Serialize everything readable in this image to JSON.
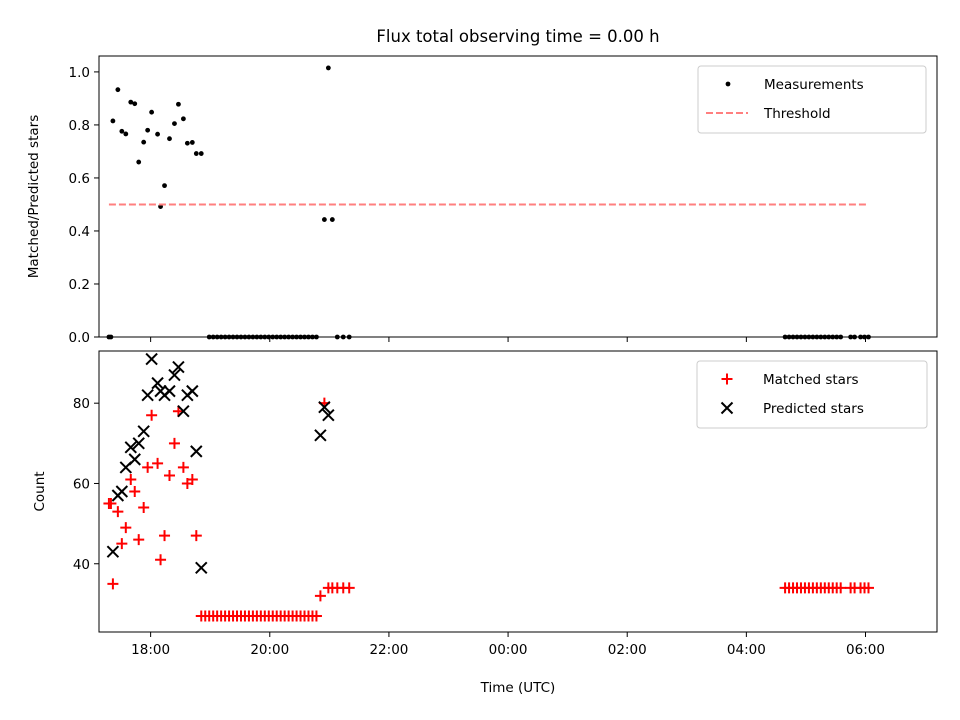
{
  "figure": {
    "title": "Flux total observing time = 0.00 h",
    "xlabel": "Time (UTC)"
  },
  "chart_data": [
    {
      "type": "scatter",
      "panel": "top",
      "ylabel": "Matched/Predicted stars",
      "x_axis_type": "time",
      "xlim": [
        "17:08",
        "07:12"
      ],
      "xticks": [
        "18:00",
        "20:00",
        "22:00",
        "00:00",
        "02:00",
        "04:00",
        "06:00"
      ],
      "ylim": [
        0,
        1.06
      ],
      "yticks": [
        "0.0",
        "0.2",
        "0.4",
        "0.6",
        "0.8",
        "1.0"
      ],
      "grid": false,
      "legend_position": "upper right",
      "legend": [
        "Measurements",
        "Threshold"
      ],
      "series": [
        {
          "name": "Measurements",
          "marker": "dot",
          "color": "#000000",
          "points": [
            [
              "17:18",
              0.0
            ],
            [
              "17:20",
              0.0
            ],
            [
              "17:22",
              0.815
            ],
            [
              "17:27",
              0.933
            ],
            [
              "17:31",
              0.776
            ],
            [
              "17:35",
              0.766
            ],
            [
              "17:40",
              0.886
            ],
            [
              "17:44",
              0.88
            ],
            [
              "17:48",
              0.66
            ],
            [
              "17:53",
              0.735
            ],
            [
              "17:57",
              0.78
            ],
            [
              "18:01",
              0.848
            ],
            [
              "18:07",
              0.765
            ],
            [
              "18:10",
              0.492
            ],
            [
              "18:14",
              0.571
            ],
            [
              "18:19",
              0.748
            ],
            [
              "18:24",
              0.805
            ],
            [
              "18:28",
              0.878
            ],
            [
              "18:33",
              0.823
            ],
            [
              "18:37",
              0.731
            ],
            [
              "18:42",
              0.734
            ],
            [
              "18:46",
              0.692
            ],
            [
              "18:51",
              0.692
            ],
            [
              "18:59",
              0.0
            ],
            [
              "19:03",
              0.0
            ],
            [
              "19:07",
              0.0
            ],
            [
              "19:11",
              0.0
            ],
            [
              "19:15",
              0.0
            ],
            [
              "19:19",
              0.0
            ],
            [
              "19:23",
              0.0
            ],
            [
              "19:27",
              0.0
            ],
            [
              "19:31",
              0.0
            ],
            [
              "19:35",
              0.0
            ],
            [
              "19:39",
              0.0
            ],
            [
              "19:43",
              0.0
            ],
            [
              "19:47",
              0.0
            ],
            [
              "19:51",
              0.0
            ],
            [
              "19:55",
              0.0
            ],
            [
              "19:59",
              0.0
            ],
            [
              "20:03",
              0.0
            ],
            [
              "20:07",
              0.0
            ],
            [
              "20:11",
              0.0
            ],
            [
              "20:15",
              0.0
            ],
            [
              "20:19",
              0.0
            ],
            [
              "20:23",
              0.0
            ],
            [
              "20:27",
              0.0
            ],
            [
              "20:31",
              0.0
            ],
            [
              "20:35",
              0.0
            ],
            [
              "20:39",
              0.0
            ],
            [
              "20:43",
              0.0
            ],
            [
              "20:47",
              0.0
            ],
            [
              "20:55",
              0.443
            ],
            [
              "20:59",
              1.015
            ],
            [
              "21:03",
              0.443
            ],
            [
              "21:08",
              0.0
            ],
            [
              "21:14",
              0.0
            ],
            [
              "21:20",
              0.0
            ],
            [
              "04:39",
              0.0
            ],
            [
              "04:43",
              0.0
            ],
            [
              "04:47",
              0.0
            ],
            [
              "04:51",
              0.0
            ],
            [
              "04:55",
              0.0
            ],
            [
              "04:59",
              0.0
            ],
            [
              "05:03",
              0.0
            ],
            [
              "05:07",
              0.0
            ],
            [
              "05:11",
              0.0
            ],
            [
              "05:15",
              0.0
            ],
            [
              "05:19",
              0.0
            ],
            [
              "05:23",
              0.0
            ],
            [
              "05:27",
              0.0
            ],
            [
              "05:31",
              0.0
            ],
            [
              "05:35",
              0.0
            ],
            [
              "05:45",
              0.0
            ],
            [
              "05:49",
              0.0
            ],
            [
              "05:55",
              0.0
            ],
            [
              "05:59",
              0.0
            ],
            [
              "06:03",
              0.0
            ]
          ]
        },
        {
          "name": "Threshold",
          "style": "dashed-line",
          "color": "#ff7f7f",
          "points": [
            [
              "17:18",
              0.5
            ],
            [
              "06:03",
              0.5
            ]
          ]
        }
      ]
    },
    {
      "type": "scatter",
      "panel": "bottom",
      "ylabel": "Count",
      "x_axis_type": "time",
      "xlim": [
        "17:08",
        "07:12"
      ],
      "xticks": [
        "18:00",
        "20:00",
        "22:00",
        "00:00",
        "02:00",
        "04:00",
        "06:00"
      ],
      "ylim": [
        23,
        93
      ],
      "yticks": [
        "40",
        "60",
        "80"
      ],
      "grid": false,
      "legend_position": "upper right",
      "legend": [
        "Matched stars",
        "Predicted stars"
      ],
      "series": [
        {
          "name": "Matched stars",
          "marker": "plus",
          "color": "#ff0000",
          "points": [
            [
              "17:18",
              55
            ],
            [
              "17:20",
              55
            ],
            [
              "17:22",
              35
            ],
            [
              "17:27",
              53
            ],
            [
              "17:31",
              45
            ],
            [
              "17:35",
              49
            ],
            [
              "17:40",
              61
            ],
            [
              "17:44",
              58
            ],
            [
              "17:48",
              46
            ],
            [
              "17:53",
              54
            ],
            [
              "17:57",
              64
            ],
            [
              "18:01",
              77
            ],
            [
              "18:07",
              65
            ],
            [
              "18:10",
              41
            ],
            [
              "18:14",
              47
            ],
            [
              "18:19",
              62
            ],
            [
              "18:24",
              70
            ],
            [
              "18:28",
              78
            ],
            [
              "18:33",
              64
            ],
            [
              "18:37",
              60
            ],
            [
              "18:42",
              61
            ],
            [
              "18:46",
              47
            ],
            [
              "18:51",
              27
            ],
            [
              "18:55",
              27
            ],
            [
              "18:59",
              27
            ],
            [
              "19:03",
              27
            ],
            [
              "19:07",
              27
            ],
            [
              "19:11",
              27
            ],
            [
              "19:15",
              27
            ],
            [
              "19:19",
              27
            ],
            [
              "19:23",
              27
            ],
            [
              "19:27",
              27
            ],
            [
              "19:31",
              27
            ],
            [
              "19:35",
              27
            ],
            [
              "19:39",
              27
            ],
            [
              "19:43",
              27
            ],
            [
              "19:47",
              27
            ],
            [
              "19:51",
              27
            ],
            [
              "19:55",
              27
            ],
            [
              "19:59",
              27
            ],
            [
              "20:03",
              27
            ],
            [
              "20:07",
              27
            ],
            [
              "20:11",
              27
            ],
            [
              "20:15",
              27
            ],
            [
              "20:19",
              27
            ],
            [
              "20:23",
              27
            ],
            [
              "20:27",
              27
            ],
            [
              "20:31",
              27
            ],
            [
              "20:35",
              27
            ],
            [
              "20:39",
              27
            ],
            [
              "20:43",
              27
            ],
            [
              "20:47",
              27
            ],
            [
              "20:51",
              32
            ],
            [
              "20:55",
              80
            ],
            [
              "20:59",
              34
            ],
            [
              "21:03",
              34
            ],
            [
              "21:08",
              34
            ],
            [
              "21:14",
              34
            ],
            [
              "21:20",
              34
            ],
            [
              "04:39",
              34
            ],
            [
              "04:43",
              34
            ],
            [
              "04:47",
              34
            ],
            [
              "04:51",
              34
            ],
            [
              "04:55",
              34
            ],
            [
              "04:59",
              34
            ],
            [
              "05:03",
              34
            ],
            [
              "05:07",
              34
            ],
            [
              "05:11",
              34
            ],
            [
              "05:15",
              34
            ],
            [
              "05:19",
              34
            ],
            [
              "05:23",
              34
            ],
            [
              "05:27",
              34
            ],
            [
              "05:31",
              34
            ],
            [
              "05:35",
              34
            ],
            [
              "05:45",
              34
            ],
            [
              "05:49",
              34
            ],
            [
              "05:55",
              34
            ],
            [
              "05:59",
              34
            ],
            [
              "06:03",
              34
            ]
          ]
        },
        {
          "name": "Predicted stars",
          "marker": "x",
          "color": "#000000",
          "points": [
            [
              "17:22",
              43
            ],
            [
              "17:27",
              57
            ],
            [
              "17:31",
              58
            ],
            [
              "17:35",
              64
            ],
            [
              "17:40",
              69
            ],
            [
              "17:44",
              66
            ],
            [
              "17:48",
              70
            ],
            [
              "17:53",
              73
            ],
            [
              "17:57",
              82
            ],
            [
              "18:01",
              91
            ],
            [
              "18:07",
              85
            ],
            [
              "18:10",
              83
            ],
            [
              "18:14",
              82
            ],
            [
              "18:19",
              83
            ],
            [
              "18:24",
              87
            ],
            [
              "18:28",
              89
            ],
            [
              "18:33",
              78
            ],
            [
              "18:37",
              82
            ],
            [
              "18:42",
              83
            ],
            [
              "18:46",
              68
            ],
            [
              "18:51",
              39
            ],
            [
              "20:51",
              72
            ],
            [
              "20:55",
              79
            ],
            [
              "20:59",
              77
            ]
          ]
        }
      ]
    }
  ]
}
